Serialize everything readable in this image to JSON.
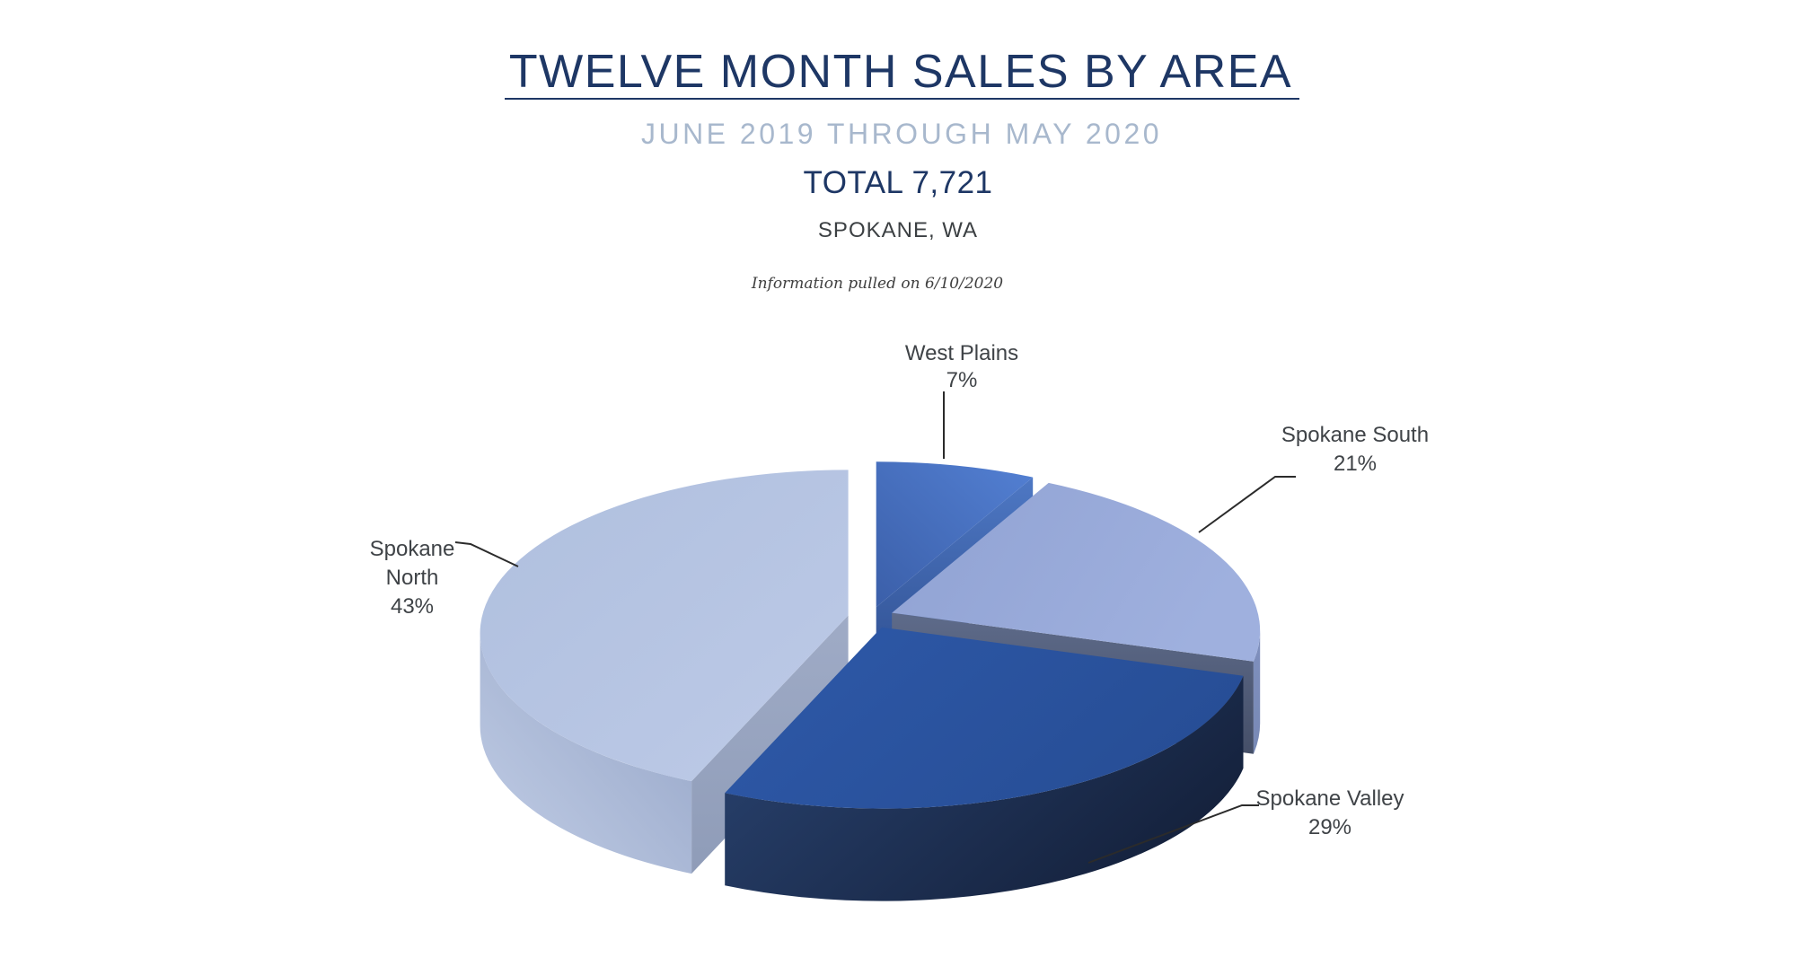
{
  "header": {
    "title": "TWELVE MONTH SALES BY AREA",
    "subtitle": "JUNE 2019 THROUGH MAY 2020",
    "total_label": "TOTAL 7,721",
    "location": "SPOKANE, WA",
    "note": "Information pulled on 6/10/2020"
  },
  "colors": {
    "title": "#1E3765",
    "subtitle": "#A8B8CD",
    "total": "#1E3765",
    "location": "#3C4043",
    "note": "#3F3F3F",
    "label_text": "#3F4347",
    "leader_line": "#2B2B2B",
    "background": "#FFFFFF"
  },
  "chart_data": {
    "type": "pie",
    "style": "3d-exploded",
    "title": "TWELVE MONTH SALES BY AREA",
    "period": "JUNE 2019 THROUGH MAY 2020",
    "total": 7721,
    "location": "SPOKANE, WA",
    "note_date": "6/10/2020",
    "start_angle_deg": 0,
    "direction": "clockwise",
    "legend": "none",
    "unit": "%",
    "categories": [
      "West Plains",
      "Spokane South",
      "Spokane Valley",
      "Spokane North"
    ],
    "values": [
      7,
      21,
      29,
      43
    ],
    "slices": [
      {
        "label": "West Plains",
        "pct": 7,
        "pct_label": "7%",
        "label_lines": [
          "West Plains"
        ],
        "color_top": [
          "#3B5FA9",
          "#5380D3"
        ],
        "color_cut": [
          "#4E78C4",
          "#2B4A8A"
        ]
      },
      {
        "label": "Spokane South",
        "pct": 21,
        "pct_label": "21%",
        "label_lines": [
          "Spokane South"
        ],
        "color_top": [
          "#90A2D3",
          "#9FB0DE"
        ],
        "color_rim": [
          "#7F90BD",
          "#7889B6"
        ],
        "color_cut": [
          "#5E6B8A",
          "#454F68"
        ]
      },
      {
        "label": "Spokane Valley",
        "pct": 29,
        "pct_label": "29%",
        "label_lines": [
          "Spokane Valley"
        ],
        "color_top": [
          "#2E59A9",
          "#274E96"
        ],
        "color_rim": [
          "#2A4472",
          "#15223D"
        ]
      },
      {
        "label": "Spokane North",
        "pct": 43,
        "pct_label": "43%",
        "label_lines": [
          "Spokane",
          "North"
        ],
        "color_top": [
          "#AFBFDE",
          "#BDCAE7"
        ],
        "color_rim": [
          "#93A3C6",
          "#C2CEE6"
        ],
        "color_cut": [
          "#9FABC6",
          "#8F9CB8"
        ]
      }
    ]
  }
}
